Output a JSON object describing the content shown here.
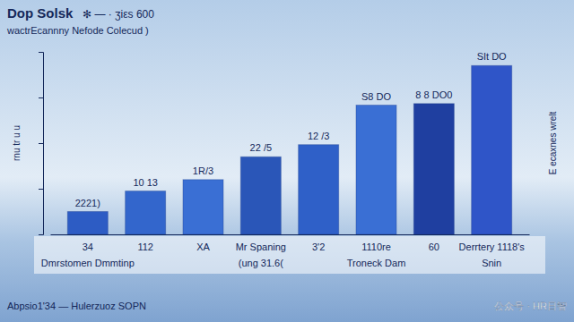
{
  "chart_data": {
    "type": "bar",
    "title": "Dop Solsk",
    "title_note": "✻ — ·  ʒiεs 600",
    "subtitle": "wactrEcannny Nefode Colecud )",
    "y_label": "rnu tr u u",
    "right_label": "E ecaxnes wrelt",
    "categories": [
      "34",
      "112",
      "XA",
      "Mr Spaning",
      "3'2",
      "1110re",
      "60",
      "Derrtery 1118's"
    ],
    "sublabels": [
      "Dmrstomen Dmmtinp",
      null,
      null,
      "(ung 31.6(",
      null,
      "Troneck Dam",
      null,
      "Snin"
    ],
    "values": [
      30,
      57,
      72,
      102,
      118,
      170,
      172,
      222
    ],
    "bar_labels": [
      "2221)",
      "10 13",
      "1R/3",
      "22 /5",
      "12 /3",
      "S8 DO",
      "8 8 DO0",
      "SIt DO"
    ],
    "colors": [
      "#2d5cc4",
      "#3366cc",
      "#3a6fd4",
      "#2a56b8",
      "#2f60c8",
      "#3a6fd4",
      "#1f3fa0",
      "#2f55c8"
    ],
    "ylim": [
      0,
      240
    ],
    "yticks": [
      0,
      60,
      120,
      180,
      240
    ],
    "tick_labels": "x",
    "grid": false,
    "footer": "Abpsio1'34 — Hulerzuoz SOPN",
    "watermark": "公众号 · HR日智"
  }
}
